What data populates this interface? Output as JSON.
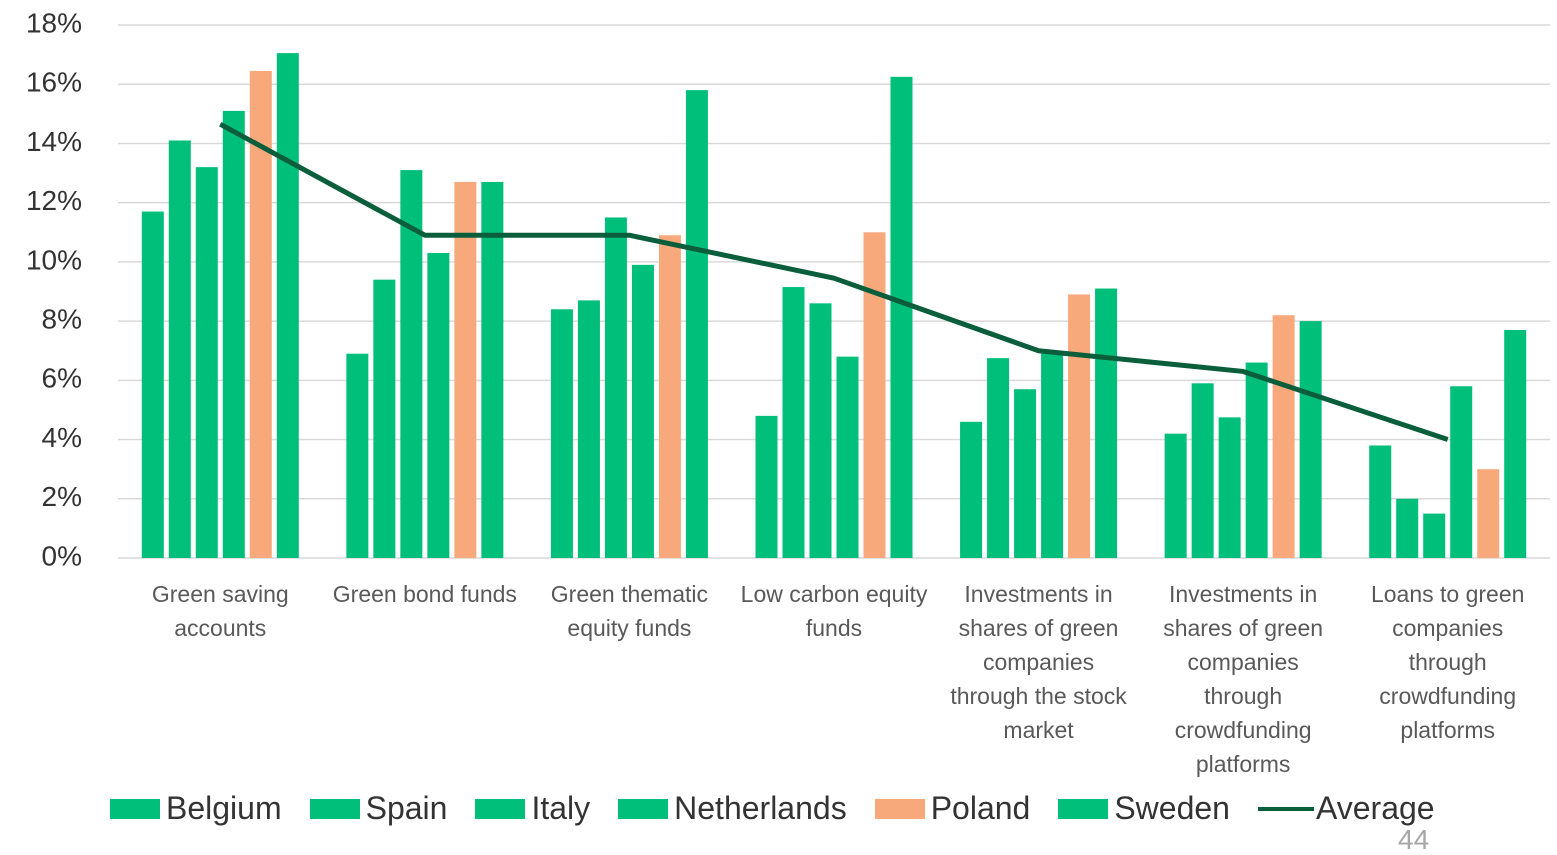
{
  "chart_data": {
    "type": "bar",
    "categories": [
      "Green saving accounts",
      "Green bond funds",
      "Green thematic equity funds",
      "Low carbon equity funds",
      "Investments in shares of green companies through the stock market",
      "Investments in shares of green companies through crowdfunding platforms",
      "Loans to green companies through crowdfunding platforms"
    ],
    "series": [
      {
        "name": "Belgium",
        "color": "#00bf7a",
        "values": [
          11.7,
          6.9,
          8.4,
          4.8,
          4.6,
          4.2,
          3.8
        ]
      },
      {
        "name": "Spain",
        "color": "#00bf7a",
        "values": [
          14.1,
          9.4,
          8.7,
          9.15,
          6.75,
          5.9,
          2.0
        ]
      },
      {
        "name": "Italy",
        "color": "#00bf7a",
        "values": [
          13.2,
          13.1,
          11.5,
          8.6,
          5.7,
          4.75,
          1.5
        ]
      },
      {
        "name": "Netherlands",
        "color": "#00bf7a",
        "values": [
          15.1,
          10.3,
          9.9,
          6.8,
          6.95,
          6.6,
          5.8
        ]
      },
      {
        "name": "Poland",
        "color": "#f8a97c",
        "values": [
          16.45,
          12.7,
          10.9,
          11.0,
          8.9,
          8.2,
          3.0
        ]
      },
      {
        "name": "Sweden",
        "color": "#00bf7a",
        "values": [
          17.05,
          12.7,
          15.8,
          16.25,
          9.1,
          8.0,
          7.7
        ]
      },
      {
        "name": "Average",
        "type": "line",
        "color": "#0b5e3c",
        "values": [
          14.65,
          10.9,
          10.9,
          9.45,
          7.0,
          6.3,
          4.0
        ]
      }
    ],
    "ylim": [
      0,
      18
    ],
    "yticks": [
      {
        "value": 0,
        "label": "0%"
      },
      {
        "value": 2,
        "label": "2%"
      },
      {
        "value": 4,
        "label": "4%"
      },
      {
        "value": 6,
        "label": "6%"
      },
      {
        "value": 8,
        "label": "8%"
      },
      {
        "value": 10,
        "label": "10%"
      },
      {
        "value": 12,
        "label": "12%"
      },
      {
        "value": 14,
        "label": "14%"
      },
      {
        "value": 16,
        "label": "16%"
      },
      {
        "value": 18,
        "label": "18%"
      }
    ],
    "grid": true,
    "legend": "bottom"
  },
  "page_number": "44"
}
